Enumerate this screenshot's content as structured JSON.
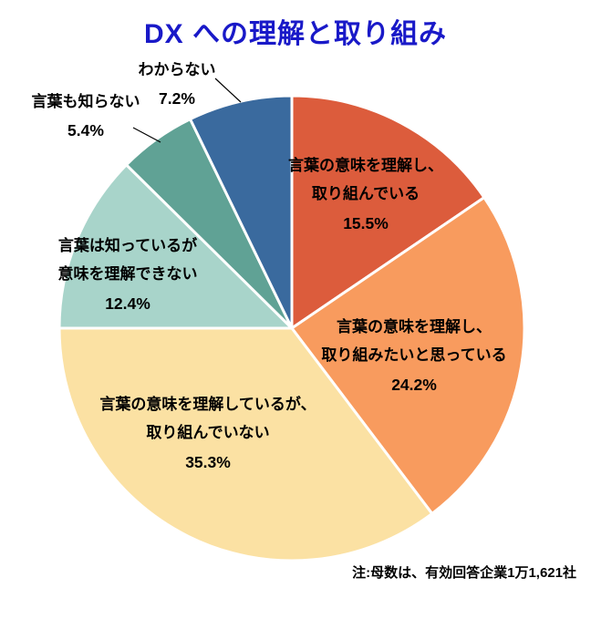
{
  "title": "DX への理解と取り組み",
  "note": "注:母数は、有効回答企業1万1,621社",
  "colors": {
    "title": "#1919C8",
    "slice_border": "#FFFFFF",
    "leader_line": "#000000",
    "label_text": "#000000"
  },
  "chart_data": {
    "type": "pie",
    "title": "DX への理解と取り組み",
    "start_angle_deg": 0,
    "direction": "clockwise",
    "center": [
      320,
      360
    ],
    "radius": 255,
    "legend_position": "labels-on-and-around-slices",
    "slices": [
      {
        "label": "言葉の意味を理解し、取り組んでいる",
        "label_lines": [
          "言葉の意味を理解し、",
          "取り組んでいる"
        ],
        "value": 15.5,
        "pct": "15.5%",
        "color": "#DC5C3C"
      },
      {
        "label": "言葉の意味を理解し、取り組みたいと思っている",
        "label_lines": [
          "言葉の意味を理解し、",
          "取り組みたいと思っている"
        ],
        "value": 24.2,
        "pct": "24.2%",
        "color": "#F89B5E"
      },
      {
        "label": "言葉の意味を理解しているが、取り組んでいない",
        "label_lines": [
          "言葉の意味を理解しているが、",
          "取り組んでいない"
        ],
        "value": 35.3,
        "pct": "35.3%",
        "color": "#FBE1A3"
      },
      {
        "label": "言葉は知っているが意味を理解できない",
        "label_lines": [
          "言葉は知っているが",
          "意味を理解できない"
        ],
        "value": 12.4,
        "pct": "12.4%",
        "color": "#A8D4CA"
      },
      {
        "label": "言葉も知らない",
        "label_lines": [
          "言葉も知らない"
        ],
        "value": 5.4,
        "pct": "5.4%",
        "color": "#60A295"
      },
      {
        "label": "わからない",
        "label_lines": [
          "わからない"
        ],
        "value": 7.2,
        "pct": "7.2%",
        "color": "#3A6A9E"
      }
    ],
    "leader_lines": [
      [
        236,
        86,
        264,
        112
      ],
      [
        146,
        140,
        176,
        156
      ]
    ]
  }
}
